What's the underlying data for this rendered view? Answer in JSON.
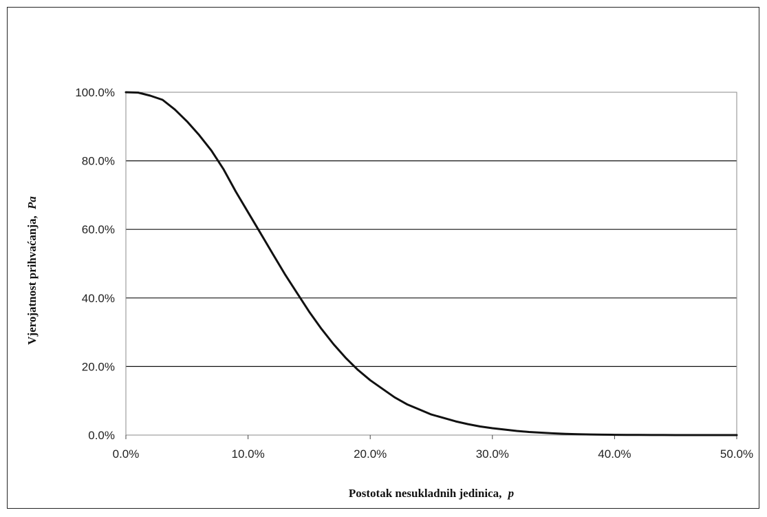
{
  "chart_data": {
    "type": "line",
    "xlabel": "Postotak nesukladnih jedinica,",
    "xlabel_var": "p",
    "ylabel": "Vjerojatnost prihvaćanja,",
    "ylabel_var": "Pa",
    "xlim": [
      0,
      50
    ],
    "ylim": [
      0,
      100
    ],
    "x_ticks": [
      "0.0%",
      "10.0%",
      "20.0%",
      "30.0%",
      "40.0%",
      "50.0%"
    ],
    "y_ticks": [
      "0.0%",
      "20.0%",
      "40.0%",
      "60.0%",
      "80.0%",
      "100.0%"
    ],
    "x_tick_values": [
      0,
      10,
      20,
      30,
      40,
      50
    ],
    "y_tick_values": [
      0,
      20,
      40,
      60,
      80,
      100
    ],
    "grid": "horizontal",
    "line_color": "#111111",
    "series": [
      {
        "x": [
          0,
          1,
          2,
          3,
          4,
          5,
          6,
          7,
          8,
          9,
          10,
          11,
          12,
          13,
          14,
          15,
          16,
          17,
          18,
          19,
          20,
          21,
          22,
          23,
          24,
          25,
          26,
          27,
          28,
          29,
          30,
          31,
          32,
          33,
          34,
          35,
          36,
          37,
          38,
          39,
          40,
          41,
          42,
          43,
          44,
          45,
          46,
          47,
          48,
          49,
          50
        ],
        "values": [
          100,
          99.9,
          99,
          97.8,
          95,
          91.5,
          87.5,
          83,
          77.5,
          71,
          65,
          59,
          53,
          47,
          41.5,
          36,
          31,
          26.5,
          22.5,
          19,
          16,
          13.5,
          11,
          9,
          7.5,
          6,
          5,
          4,
          3.2,
          2.5,
          2,
          1.6,
          1.2,
          0.9,
          0.7,
          0.5,
          0.35,
          0.25,
          0.18,
          0.12,
          0.08,
          0.05,
          0.04,
          0.03,
          0.02,
          0.01,
          0.01,
          0,
          0,
          0,
          0
        ]
      }
    ]
  }
}
